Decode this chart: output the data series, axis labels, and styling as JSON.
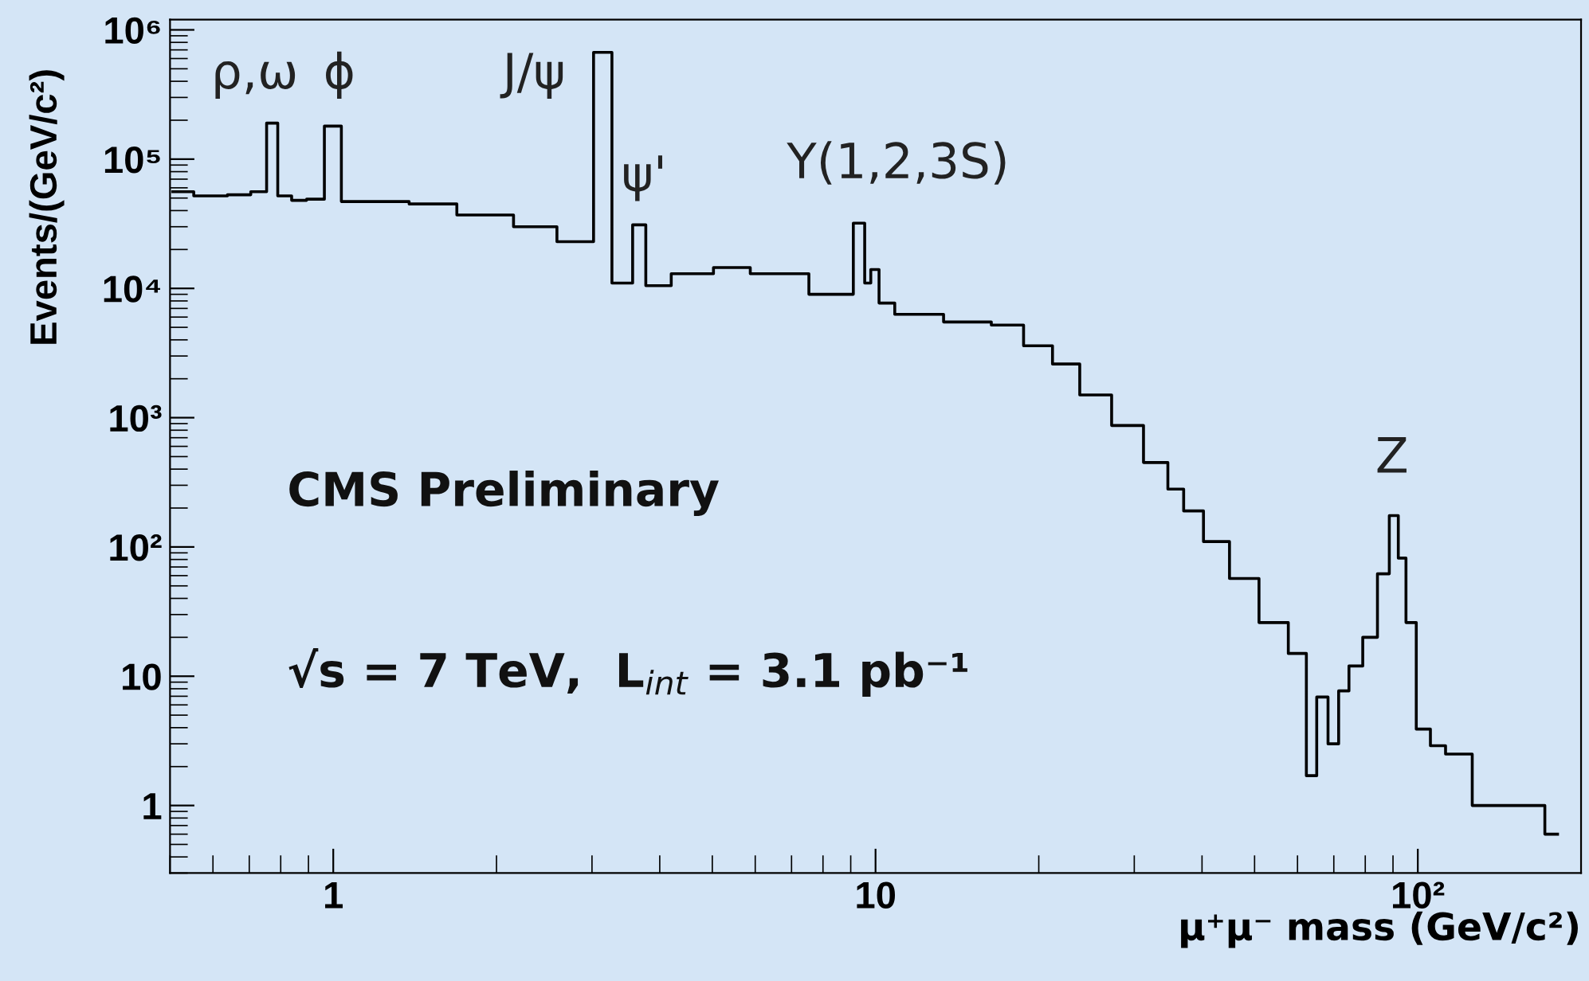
{
  "chart_data": {
    "type": "step",
    "xlabel": "μ⁺μ⁻ mass (GeV/c²)",
    "ylabel": "Events/(GeV/c²)",
    "log": "xy",
    "xlim": [
      0.5,
      200
    ],
    "ylim": [
      0.3,
      1200000
    ],
    "xticks": [
      1,
      10,
      {
        "value": 100,
        "label": "10²"
      }
    ],
    "yticks": [
      1,
      10,
      {
        "value": 100,
        "label": "10²"
      },
      {
        "value": 1000,
        "label": "10³"
      },
      {
        "value": 10000,
        "label": "10⁴"
      },
      {
        "value": 100000,
        "label": "10⁵"
      },
      {
        "value": 1000000,
        "label": "10⁶"
      }
    ],
    "grid": false,
    "legend": false,
    "series": [
      {
        "color": "#000000",
        "x": [
          0.506,
          0.6,
          0.676,
          0.733,
          0.774,
          0.806,
          0.87,
          0.916,
          1.01,
          1.06,
          1.24,
          1.52,
          1.86,
          2.44,
          2.73,
          2.93,
          3.11,
          3.42,
          3.71,
          3.83,
          4.57,
          5.48,
          6.27,
          8.8,
          9.4,
          9.7,
          9.9,
          10.4,
          11.3,
          15.4,
          17.3,
          20.2,
          22.2,
          25.4,
          29.1,
          33.3,
          35.9,
          38.1,
          42.4,
          47.5,
          54.4,
          61,
          63.6,
          66.6,
          70,
          72.9,
          76.4,
          81.9,
          86.6,
          90.6,
          93.5,
          96.7,
          102,
          109,
          116,
          124,
          128,
          136,
          148,
          162,
          181
        ],
        "values": [
          56000,
          52000,
          53000,
          56000,
          190000,
          52000,
          48000,
          49000,
          180000,
          47000,
          47000,
          45000,
          37000,
          30000,
          23000,
          23000,
          670000,
          11000,
          31000,
          10500,
          13000,
          14500,
          13000,
          9000,
          32000,
          11000,
          14000,
          7700,
          6300,
          5500,
          5200,
          3600,
          2600,
          1500,
          870,
          450,
          280,
          190,
          110,
          57,
          26,
          15,
          1.7,
          6.9,
          3,
          7.7,
          12,
          20,
          62,
          175,
          82,
          26,
          3.9,
          2.9,
          2.5,
          2.5,
          1,
          1,
          1,
          1,
          0.6
        ]
      }
    ],
    "annotations": [
      "ρ,ω",
      "ϕ",
      "J/ψ",
      "ψ'",
      "Υ(1,2,3S)",
      "Z",
      "CMS Preliminary",
      "√s = 7 TeV,  L$_{int}$ = 3.1 pb⁻¹"
    ]
  }
}
